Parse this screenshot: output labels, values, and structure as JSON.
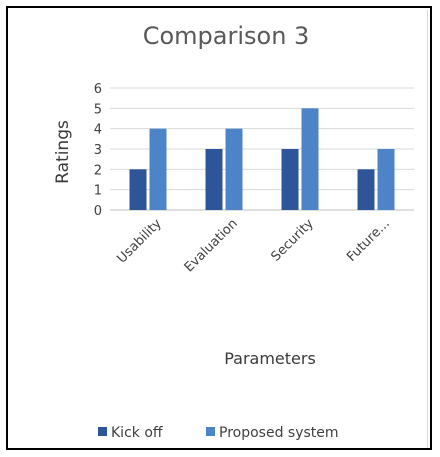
{
  "chart_data": {
    "type": "bar",
    "title": "Comparison 3",
    "xlabel": "Parameters",
    "ylabel": "Ratings",
    "categories": [
      "Usability",
      "Evaluation",
      "Security",
      "Future..."
    ],
    "series": [
      {
        "name": "Kick off",
        "values": [
          2,
          3,
          3,
          2
        ],
        "color": "#2e5597"
      },
      {
        "name": "Proposed system",
        "values": [
          4,
          4,
          5,
          3
        ],
        "color": "#4d83c7"
      }
    ],
    "ylim": [
      0,
      6
    ],
    "yticks": [
      "0",
      "1",
      "2",
      "3",
      "4",
      "5",
      "6"
    ],
    "grid": true,
    "legend": "bottom"
  }
}
